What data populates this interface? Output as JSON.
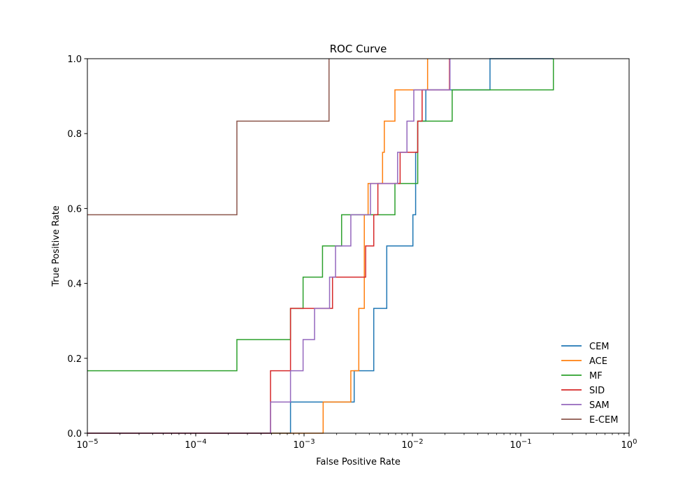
{
  "chart_data": {
    "type": "line",
    "title": "ROC Curve",
    "xlabel": "False Positive Rate",
    "ylabel": "True Positive Rate",
    "xscale": "log",
    "xlim": [
      1e-05,
      1
    ],
    "ylim": [
      0,
      1
    ],
    "x_ticks": [
      {
        "value": 1e-05,
        "base": "10",
        "exp": "−5"
      },
      {
        "value": 0.0001,
        "base": "10",
        "exp": "−4"
      },
      {
        "value": 0.001,
        "base": "10",
        "exp": "−3"
      },
      {
        "value": 0.01,
        "base": "10",
        "exp": "−2"
      },
      {
        "value": 0.1,
        "base": "10",
        "exp": "−1"
      },
      {
        "value": 1,
        "base": "10",
        "exp": "0"
      }
    ],
    "y_ticks": [
      {
        "value": 0.0,
        "label": "0.0"
      },
      {
        "value": 0.2,
        "label": "0.2"
      },
      {
        "value": 0.4,
        "label": "0.4"
      },
      {
        "value": 0.6,
        "label": "0.6"
      },
      {
        "value": 0.8,
        "label": "0.8"
      },
      {
        "value": 1.0,
        "label": "1.0"
      }
    ],
    "legend_position": "bottom-right",
    "series": [
      {
        "name": "CEM",
        "color": "#1f77b4",
        "x": [
          1e-05,
          0.00075,
          0.00075,
          0.0029,
          0.0029,
          0.0044,
          0.0044,
          0.0058,
          0.0058,
          0.0101,
          0.0101,
          0.0107,
          0.0107,
          0.0112,
          0.0112,
          0.0133,
          0.0133,
          0.0159,
          0.0159,
          0.052,
          0.052,
          0.2
        ],
        "y": [
          0.0,
          0.0,
          0.0833,
          0.0833,
          0.1667,
          0.1667,
          0.3333,
          0.3333,
          0.5,
          0.5,
          0.5833,
          0.5833,
          0.75,
          0.75,
          0.8333,
          0.8333,
          0.9167,
          0.9167,
          0.9167,
          0.9167,
          1.0,
          1.0
        ]
      },
      {
        "name": "ACE",
        "color": "#ff7f0e",
        "x": [
          1e-05,
          0.0015,
          0.0015,
          0.0027,
          0.0027,
          0.0032,
          0.0032,
          0.0036,
          0.0036,
          0.0039,
          0.0039,
          0.0053,
          0.0053,
          0.0055,
          0.0055,
          0.0069,
          0.0069,
          0.0095,
          0.0095,
          0.0138,
          0.0138
        ],
        "y": [
          0.0,
          0.0,
          0.0833,
          0.0833,
          0.1667,
          0.1667,
          0.3333,
          0.3333,
          0.5833,
          0.5833,
          0.6667,
          0.6667,
          0.75,
          0.75,
          0.8333,
          0.8333,
          0.9167,
          0.9167,
          0.9167,
          0.9167,
          1.0
        ]
      },
      {
        "name": "MF",
        "color": "#2ca02c",
        "x": [
          1e-05,
          0.00024,
          0.00024,
          0.00075,
          0.00075,
          0.00098,
          0.00098,
          0.00148,
          0.00148,
          0.00222,
          0.00222,
          0.0069,
          0.0069,
          0.0112,
          0.0112,
          0.0233,
          0.0233,
          0.2,
          0.2
        ],
        "y": [
          0.1667,
          0.1667,
          0.25,
          0.25,
          0.3333,
          0.3333,
          0.4167,
          0.4167,
          0.5,
          0.5,
          0.5833,
          0.5833,
          0.6667,
          0.6667,
          0.8333,
          0.8333,
          0.9167,
          0.9167,
          1.0
        ]
      },
      {
        "name": "SID",
        "color": "#d62728",
        "x": [
          1e-05,
          0.00049,
          0.00049,
          0.00075,
          0.00075,
          0.00183,
          0.00183,
          0.0037,
          0.0037,
          0.0044,
          0.0044,
          0.0048,
          0.0048,
          0.0077,
          0.0077,
          0.0112,
          0.0112,
          0.0123,
          0.0123,
          0.022,
          0.022
        ],
        "y": [
          0.0,
          0.0,
          0.1667,
          0.1667,
          0.3333,
          0.3333,
          0.4167,
          0.4167,
          0.5,
          0.5,
          0.5833,
          0.5833,
          0.6667,
          0.6667,
          0.75,
          0.75,
          0.8333,
          0.8333,
          0.9167,
          0.9167,
          1.0
        ]
      },
      {
        "name": "SAM",
        "color": "#9467bd",
        "x": [
          1e-05,
          0.00049,
          0.00049,
          0.00075,
          0.00075,
          0.00098,
          0.00098,
          0.00125,
          0.00125,
          0.00172,
          0.00172,
          0.00195,
          0.00195,
          0.0027,
          0.0027,
          0.0041,
          0.0041,
          0.0073,
          0.0073,
          0.0089,
          0.0089,
          0.0103,
          0.0103,
          0.0222,
          0.0222
        ],
        "y": [
          0.0,
          0.0,
          0.0833,
          0.0833,
          0.1667,
          0.1667,
          0.25,
          0.25,
          0.3333,
          0.3333,
          0.4167,
          0.4167,
          0.5,
          0.5,
          0.5833,
          0.5833,
          0.6667,
          0.6667,
          0.75,
          0.75,
          0.8333,
          0.8333,
          0.9167,
          0.9167,
          1.0
        ]
      },
      {
        "name": "E-CEM",
        "color": "#8c564b",
        "x": [
          1e-05,
          0.00024,
          0.00024,
          0.0017,
          0.0017
        ],
        "y": [
          0.5833,
          0.5833,
          0.8333,
          0.8333,
          1.0
        ]
      }
    ]
  }
}
